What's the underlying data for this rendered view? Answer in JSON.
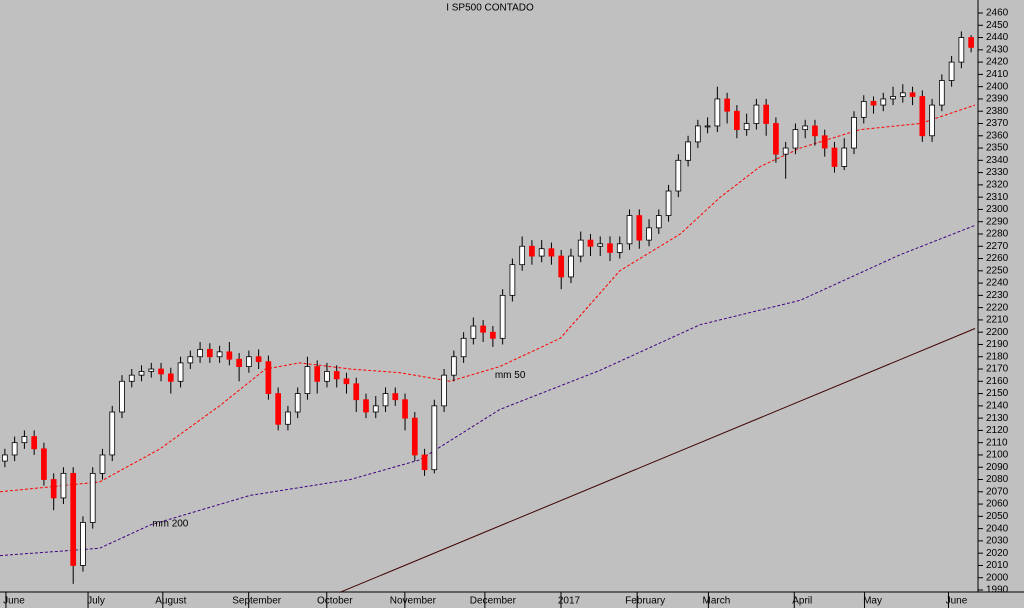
{
  "chart_data": {
    "type": "candlestick",
    "title": "I SP500 CONTADO",
    "open": [
      2095,
      2100,
      2110,
      2115,
      2105,
      2080,
      2065,
      2085,
      2010,
      2045,
      2085,
      2100,
      2135,
      2160,
      2165,
      2168,
      2170,
      2166,
      2160,
      2175,
      2180,
      2186,
      2180,
      2184,
      2178,
      2172,
      2180,
      2176,
      2150,
      2125,
      2135,
      2150,
      2172,
      2160,
      2168,
      2162,
      2158,
      2145,
      2135,
      2140,
      2150,
      2145,
      2130,
      2100,
      2088,
      2140,
      2165,
      2180,
      2195,
      2205,
      2200,
      2195,
      2230,
      2255,
      2270,
      2262,
      2268,
      2262,
      2245,
      2262,
      2275,
      2270,
      2272,
      2265,
      2272,
      2295,
      2275,
      2285,
      2295,
      2315,
      2340,
      2355,
      2368,
      2368,
      2390,
      2380,
      2365,
      2370,
      2385,
      2370,
      2345,
      2350,
      2365,
      2368,
      2360,
      2350,
      2335,
      2350,
      2375,
      2388,
      2385,
      2390,
      2392,
      2395,
      2392,
      2360,
      2385,
      2405,
      2420,
      2440
    ],
    "high": [
      2105,
      2115,
      2120,
      2120,
      2110,
      2085,
      2090,
      2090,
      2050,
      2090,
      2105,
      2140,
      2165,
      2170,
      2173,
      2175,
      2175,
      2171,
      2180,
      2185,
      2192,
      2191,
      2189,
      2192,
      2183,
      2185,
      2186,
      2181,
      2155,
      2140,
      2155,
      2180,
      2177,
      2175,
      2173,
      2167,
      2163,
      2150,
      2148,
      2155,
      2155,
      2150,
      2135,
      2105,
      2145,
      2170,
      2185,
      2200,
      2212,
      2210,
      2205,
      2235,
      2260,
      2278,
      2275,
      2275,
      2273,
      2267,
      2268,
      2282,
      2280,
      2278,
      2278,
      2278,
      2300,
      2300,
      2292,
      2300,
      2320,
      2345,
      2360,
      2373,
      2375,
      2400,
      2395,
      2385,
      2378,
      2390,
      2390,
      2375,
      2355,
      2370,
      2373,
      2373,
      2365,
      2355,
      2358,
      2380,
      2393,
      2392,
      2395,
      2400,
      2402,
      2400,
      2397,
      2390,
      2410,
      2425,
      2445,
      2442
    ],
    "low": [
      2090,
      2095,
      2105,
      2100,
      2075,
      2055,
      2060,
      1995,
      2005,
      2040,
      2080,
      2095,
      2130,
      2155,
      2160,
      2163,
      2160,
      2150,
      2155,
      2170,
      2175,
      2175,
      2175,
      2173,
      2160,
      2167,
      2170,
      2145,
      2120,
      2120,
      2130,
      2145,
      2150,
      2155,
      2155,
      2150,
      2135,
      2130,
      2130,
      2135,
      2140,
      2120,
      2095,
      2083,
      2085,
      2135,
      2160,
      2175,
      2190,
      2192,
      2188,
      2190,
      2225,
      2250,
      2255,
      2257,
      2255,
      2235,
      2240,
      2257,
      2262,
      2262,
      2258,
      2260,
      2267,
      2268,
      2270,
      2280,
      2290,
      2310,
      2335,
      2350,
      2362,
      2363,
      2370,
      2358,
      2360,
      2365,
      2360,
      2338,
      2325,
      2345,
      2358,
      2352,
      2343,
      2330,
      2332,
      2345,
      2370,
      2378,
      2380,
      2385,
      2387,
      2385,
      2355,
      2355,
      2380,
      2400,
      2415,
      2428
    ],
    "close": [
      2100,
      2110,
      2115,
      2105,
      2080,
      2065,
      2085,
      2010,
      2045,
      2085,
      2100,
      2135,
      2160,
      2165,
      2168,
      2170,
      2166,
      2160,
      2175,
      2180,
      2186,
      2180,
      2184,
      2178,
      2172,
      2180,
      2176,
      2150,
      2125,
      2135,
      2150,
      2172,
      2160,
      2168,
      2162,
      2158,
      2145,
      2135,
      2140,
      2150,
      2145,
      2130,
      2100,
      2088,
      2140,
      2165,
      2180,
      2195,
      2205,
      2200,
      2195,
      2230,
      2255,
      2270,
      2262,
      2268,
      2262,
      2245,
      2262,
      2275,
      2270,
      2272,
      2265,
      2272,
      2295,
      2275,
      2285,
      2295,
      2315,
      2340,
      2355,
      2368,
      2368,
      2390,
      2380,
      2365,
      2370,
      2385,
      2370,
      2345,
      2350,
      2365,
      2368,
      2360,
      2350,
      2335,
      2350,
      2375,
      2388,
      2385,
      2390,
      2392,
      2395,
      2392,
      2360,
      2385,
      2405,
      2420,
      2440,
      2432
    ],
    "up_color": "#ffffff",
    "down_color": "#ff0000",
    "lines": [
      {
        "name": "mm 50",
        "color": "#ff0000",
        "dash": true,
        "x": [
          -0.5,
          9.7,
          15.9,
          22,
          26.7,
          30.2,
          35.4,
          40.5,
          45.6,
          50.7,
          56.9,
          63,
          69.2,
          73.3,
          77.4,
          81.5,
          87.6,
          93.8,
          99.4
        ],
        "values": [
          2070,
          2078,
          2105,
          2140,
          2170,
          2175,
          2170,
          2167,
          2160,
          2172,
          2195,
          2250,
          2280,
          2310,
          2335,
          2350,
          2365,
          2370,
          2385
        ]
      },
      {
        "name": "mm 200",
        "color": "#400080",
        "dash": true,
        "x": [
          -0.5,
          9.7,
          14.9,
          25.1,
          35.4,
          42.5,
          50.7,
          61,
          71.2,
          81.5,
          91.7,
          99.4
        ],
        "values": [
          2018,
          2024,
          2043,
          2067,
          2080,
          2096,
          2137,
          2169,
          2206,
          2226,
          2263,
          2287
        ]
      },
      {
        "color": "#400000",
        "dash": false,
        "x": [
          34.3,
          99.4
        ],
        "values": [
          1988,
          2203
        ]
      }
    ],
    "annotations": [
      {
        "text": "mm 50",
        "x": 50.2,
        "y": 2165,
        "color": "#ff0000"
      },
      {
        "text": "mm 200",
        "x": 15.1,
        "y": 2044,
        "color": "#400080"
      }
    ],
    "xlim": [
      -0.5,
      99.5
    ],
    "xticks": [
      {
        "value": 0.93,
        "label": "June"
      },
      {
        "value": 9.34,
        "label": "July"
      },
      {
        "value": 17.0,
        "label": "August"
      },
      {
        "value": 25.8,
        "label": "September"
      },
      {
        "value": 33.8,
        "label": "October"
      },
      {
        "value": 41.8,
        "label": "November"
      },
      {
        "value": 50.0,
        "label": "December"
      },
      {
        "value": 57.8,
        "label": "2017"
      },
      {
        "value": 65.6,
        "label": "February"
      },
      {
        "value": 72.9,
        "label": "March"
      },
      {
        "value": 81.7,
        "label": "April"
      },
      {
        "value": 88.9,
        "label": "May"
      },
      {
        "value": 97.5,
        "label": "June"
      }
    ],
    "ylim": [
      1990,
      2460
    ],
    "yticks": [
      1990,
      2000,
      2010,
      2020,
      2030,
      2040,
      2050,
      2060,
      2070,
      2080,
      2090,
      2100,
      2110,
      2120,
      2130,
      2140,
      2150,
      2160,
      2170,
      2180,
      2190,
      2200,
      2210,
      2220,
      2230,
      2240,
      2250,
      2260,
      2270,
      2280,
      2290,
      2300,
      2310,
      2320,
      2330,
      2340,
      2350,
      2360,
      2370,
      2380,
      2390,
      2400,
      2410,
      2420,
      2430,
      2440,
      2450,
      2460
    ]
  }
}
